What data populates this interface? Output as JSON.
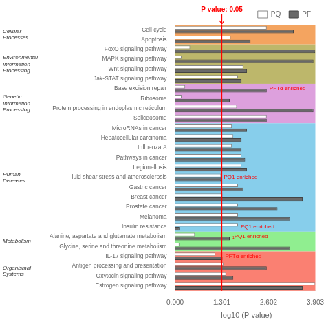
{
  "chart_data": {
    "type": "bar",
    "orientation": "horizontal",
    "xlabel": "-log10 (P value)",
    "xlim": [
      0,
      3.903
    ],
    "xticks": [
      {
        "value": 0,
        "label": "0.000"
      },
      1.301,
      2.602,
      3.903
    ],
    "grid": false,
    "legend": "upper right",
    "categories": [
      "Cell cycle",
      "Apoptosis",
      "FoxO signaling pathway",
      "MAPK signaling pathway",
      "Wnt signaling pathway",
      "Jak-STAT signaling pathway",
      "Base excision repair",
      "Ribosome",
      "Protein processing in endoplasmic reticulum",
      "Spliceosome",
      "MicroRNAs in cancer",
      "Hepatocellular carcinoma",
      "Influenza A",
      "Pathways in cancer",
      "Legionellosis",
      "Fluid shear stress and atherosclerosis",
      "Gastric cancer",
      "Breast cancer",
      "Prostate cancer",
      "Melanoma",
      "Insulin resistance",
      "Alanine, aspartate and glutamate metabolism",
      "Glycine, serine and threonine metabolism",
      "IL-17 signaling pathway",
      "Antigen processing and presentation",
      "Oxytocin signaling pathway",
      "Estrogen signaling pathway"
    ],
    "series": [
      {
        "name": "PQ",
        "color": "#FFFFFF",
        "edge_color": "#888888",
        "values": [
          2.55,
          1.55,
          0.42,
          0.18,
          1.9,
          1.75,
          0.28,
          0.18,
          1.72,
          2.55,
          1.58,
          1.62,
          1.58,
          1.85,
          1.85,
          1.28,
          1.75,
          1.32,
          1.75,
          1.75,
          1.75,
          0.55,
          0.12,
          1.12,
          1.35,
          1.42,
          3.9
        ]
      },
      {
        "name": "PF",
        "color": "#696969",
        "edge_color": "#444444",
        "values": [
          3.3,
          2.1,
          3.9,
          3.85,
          2.0,
          1.85,
          2.55,
          1.52,
          3.85,
          2.55,
          2.0,
          1.85,
          1.85,
          1.95,
          2.0,
          1.28,
          1.9,
          3.55,
          2.85,
          3.2,
          0.12,
          1.52,
          3.2,
          1.32,
          2.55,
          1.62,
          3.55
        ]
      }
    ],
    "groups": [
      {
        "name": "Cellular\nProcesses",
        "color": "#F4A460",
        "start": "Cell cycle",
        "end": "Apoptosis"
      },
      {
        "name": "Environmental\nInformation\nProcessing",
        "color": "#BDB76B",
        "start": "FoxO signaling pathway",
        "end": "Jak-STAT signaling pathway"
      },
      {
        "name": "Genetic\nInformation\nProcessing",
        "color": "#DDA0DD",
        "start": "Base excision repair",
        "end": "Spliceosome"
      },
      {
        "name": "Human\nDiseases",
        "color": "#87CEEB",
        "start": "MicroRNAs in cancer",
        "end": "Insulin resistance"
      },
      {
        "name": "Metabolism",
        "color": "#90EE90",
        "start": "Alanine, aspartate and glutamate metabolism",
        "end": "Glycine, serine and threonine metabolism"
      },
      {
        "name": "Organismal\nSystems",
        "color": "#FA8072",
        "start": "IL-17 signaling pathway",
        "end": "Estrogen signaling pathway"
      }
    ],
    "annotations": [
      {
        "type": "line",
        "x": 1.301,
        "text": "P value: 0.05",
        "color": "red"
      },
      {
        "type": "text",
        "category": "Base excision repair",
        "text": "PFTα enriched",
        "color": "red"
      },
      {
        "type": "text",
        "category": "Fluid shear stress and atherosclerosis",
        "text": "PQ1 enriched",
        "color": "red"
      },
      {
        "type": "text",
        "category": "Insulin resistance",
        "text": "PQ1 enriched",
        "color": "red"
      },
      {
        "type": "text",
        "category": "Alanine, aspartate and glutamate metabolism",
        "text": "₁PQ1 enriched",
        "color": "red"
      },
      {
        "type": "text",
        "category": "IL-17 signaling pathway",
        "text": "PFTα enriched",
        "color": "red"
      }
    ]
  }
}
